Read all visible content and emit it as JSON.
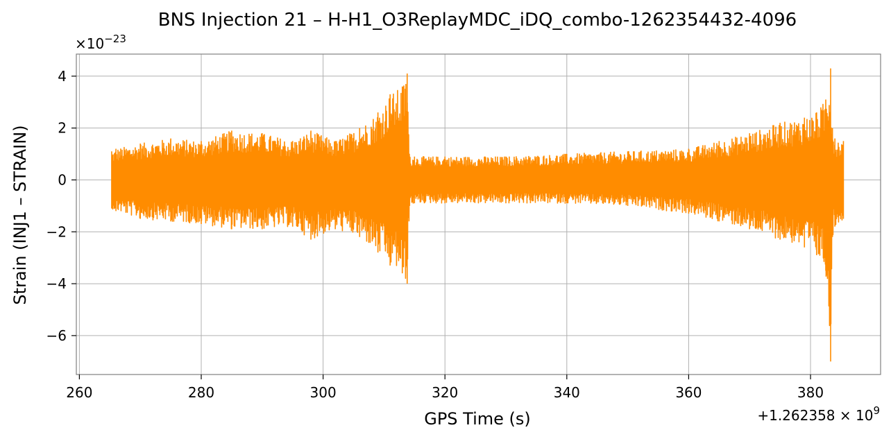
{
  "chart_data": {
    "type": "line",
    "title": "BNS Injection 21 – H-H1_O3ReplayMDC_iDQ_combo-1262354432-4096",
    "xlabel": "GPS Time (s)",
    "ylabel": "Strain (INJ1 – STRAIN)",
    "x_offset_label": "+1.262358 × 10",
    "x_offset_exp": "9",
    "y_scale_label": "×10",
    "y_scale_exp": "−23",
    "xlim": [
      259.5,
      391.5
    ],
    "ylim": [
      -7.5,
      4.85
    ],
    "xticks": [
      260,
      280,
      300,
      320,
      340,
      360,
      380
    ],
    "xtick_labels": [
      "260",
      "280",
      "300",
      "320",
      "340",
      "360",
      "380"
    ],
    "yticks": [
      4,
      2,
      0,
      -2,
      -4,
      -6
    ],
    "ytick_labels": [
      "4",
      "2",
      "0",
      "−2",
      "−4",
      "−6"
    ],
    "grid": true,
    "series": [
      {
        "color": "#ff8c00",
        "x_range": [
          265.3,
          385.4
        ],
        "envelope": {
          "x": [
            265.3,
            266,
            270,
            275,
            280,
            285,
            290,
            295,
            298,
            302,
            306,
            309,
            311,
            313,
            313.8,
            314.2,
            315,
            320,
            330,
            340,
            350,
            360,
            365,
            370,
            375,
            379,
            381,
            382.5,
            383.3,
            383.6,
            384,
            385.4
          ],
          "upper": [
            1.1,
            1.2,
            1.4,
            1.6,
            1.5,
            1.9,
            1.8,
            1.5,
            1.9,
            1.5,
            2.0,
            2.6,
            3.3,
            3.6,
            4.1,
            0.9,
            0.9,
            0.9,
            0.9,
            1.0,
            1.1,
            1.2,
            1.5,
            1.8,
            2.2,
            2.4,
            2.6,
            3.1,
            4.3,
            2.0,
            1.6,
            1.5
          ],
          "lower": [
            -1.1,
            -1.2,
            -1.5,
            -1.6,
            -1.7,
            -1.9,
            -1.9,
            -1.8,
            -2.3,
            -1.9,
            -2.2,
            -2.8,
            -3.3,
            -3.6,
            -4.0,
            -1.0,
            -0.9,
            -0.9,
            -0.9,
            -0.9,
            -1.0,
            -1.3,
            -1.6,
            -1.9,
            -2.3,
            -2.6,
            -2.9,
            -3.5,
            -7.0,
            -2.2,
            -1.8,
            -1.5
          ]
        }
      }
    ]
  }
}
